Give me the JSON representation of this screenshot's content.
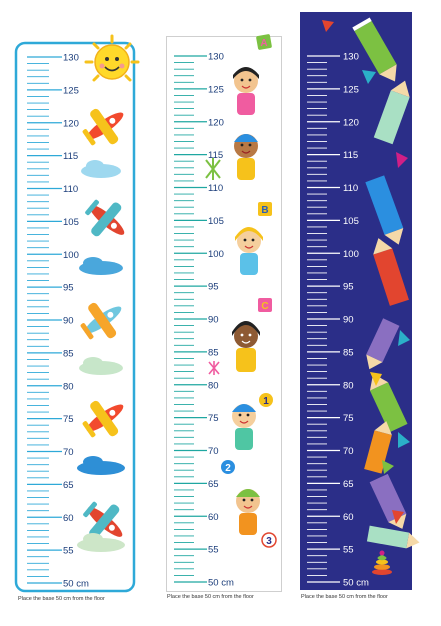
{
  "charts": [
    {
      "name": "airplane-chart",
      "theme": "airplanes",
      "tick_labels": [
        "50 cm",
        "55",
        "60",
        "65",
        "70",
        "75",
        "80",
        "85",
        "90",
        "95",
        "100",
        "105",
        "110",
        "115",
        "120",
        "125",
        "130"
      ],
      "caption": "Place the base 50 cm from the floor",
      "colors": {
        "ticks": "#2ea9d8",
        "labels": "#1b3d7a",
        "border": "#2ea9d8"
      }
    },
    {
      "name": "kids-chart",
      "theme": "children",
      "tick_labels": [
        "50 cm",
        "55",
        "60",
        "65",
        "70",
        "75",
        "80",
        "85",
        "90",
        "95",
        "100",
        "105",
        "110",
        "115",
        "120",
        "125",
        "130"
      ],
      "caption": "Place the base 50 cm from the floor",
      "badges": [
        "A",
        "B",
        "C",
        "1",
        "2",
        "3"
      ],
      "colors": {
        "ticks": "#1fa7a1",
        "labels": "#1b3d7a",
        "border": "#cfcfcf"
      }
    },
    {
      "name": "pencil-chart",
      "theme": "pencils",
      "tick_labels": [
        "50 cm",
        "55",
        "60",
        "65",
        "70",
        "75",
        "80",
        "85",
        "90",
        "95",
        "100",
        "105",
        "110",
        "115",
        "120",
        "125",
        "130"
      ],
      "caption": "Place the base 50 cm from the floor",
      "colors": {
        "ticks": "#ffffff",
        "labels": "#ffffff",
        "background": "#2b2e88"
      }
    }
  ]
}
